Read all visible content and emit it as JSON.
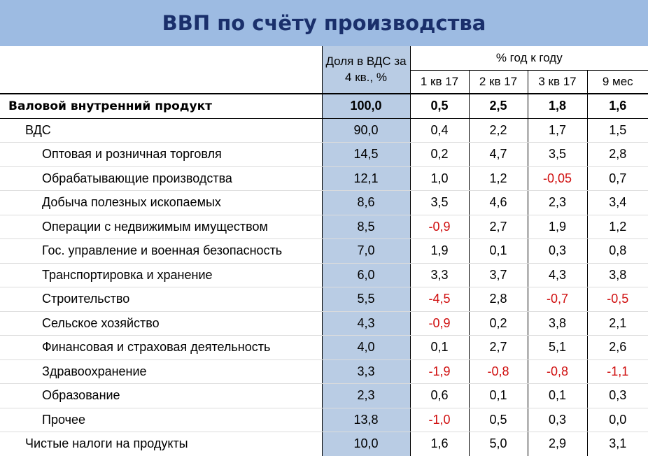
{
  "title": "ВВП по счёту производства",
  "header": {
    "share_label": "Доля в ВДС за 4 кв., %",
    "yoy_label": "% год к году",
    "periods": [
      "1 кв 17",
      "2 кв 17",
      "3 кв 17",
      "9 мес"
    ]
  },
  "rows": [
    {
      "label": "Валовой внутренний продукт",
      "share": "100,0",
      "values": [
        "0,5",
        "2,5",
        "1,8",
        "1,6"
      ]
    },
    {
      "label": "ВДС",
      "share": "90,0",
      "values": [
        "0,4",
        "2,2",
        "1,7",
        "1,5"
      ]
    },
    {
      "label": "Оптовая и розничная торговля",
      "share": "14,5",
      "values": [
        "0,2",
        "4,7",
        "3,5",
        "2,8"
      ]
    },
    {
      "label": "Обрабатывающие производства",
      "share": "12,1",
      "values": [
        "1,0",
        "1,2",
        "-0,05",
        "0,7"
      ]
    },
    {
      "label": "Добыча полезных ископаемых",
      "share": "8,6",
      "values": [
        "3,5",
        "4,6",
        "2,3",
        "3,4"
      ]
    },
    {
      "label": "Операции с недвижимым имуществом",
      "share": "8,5",
      "values": [
        "-0,9",
        "2,7",
        "1,9",
        "1,2"
      ]
    },
    {
      "label": "Гос. управление и военная безопасность",
      "share": "7,0",
      "values": [
        "1,9",
        "0,1",
        "0,3",
        "0,8"
      ]
    },
    {
      "label": "Транспортировка и хранение",
      "share": "6,0",
      "values": [
        "3,3",
        "3,7",
        "4,3",
        "3,8"
      ]
    },
    {
      "label": "Строительство",
      "share": "5,5",
      "values": [
        "-4,5",
        "2,8",
        "-0,7",
        "-0,5"
      ]
    },
    {
      "label": "Сельское хозяйство",
      "share": "4,3",
      "values": [
        "-0,9",
        "0,2",
        "3,8",
        "2,1"
      ]
    },
    {
      "label": "Финансовая и страховая деятельность",
      "share": "4,0",
      "values": [
        "0,1",
        "2,7",
        "5,1",
        "2,6"
      ]
    },
    {
      "label": "Здравоохранение",
      "share": "3,3",
      "values": [
        "-1,9",
        "-0,8",
        "-0,8",
        "-1,1"
      ]
    },
    {
      "label": "Образование",
      "share": "2,3",
      "values": [
        "0,6",
        "0,1",
        "0,1",
        "0,3"
      ]
    },
    {
      "label": "Прочее",
      "share": "13,8",
      "values": [
        "-1,0",
        "0,5",
        "0,3",
        "0,0"
      ]
    },
    {
      "label": "Чистые налоги на продукты",
      "share": "10,0",
      "values": [
        "1,6",
        "5,0",
        "2,9",
        "3,1"
      ]
    }
  ],
  "negative_color": "#d01010",
  "share_column_color": "#b9cce4",
  "title_bar_color": "#9dbbe2"
}
